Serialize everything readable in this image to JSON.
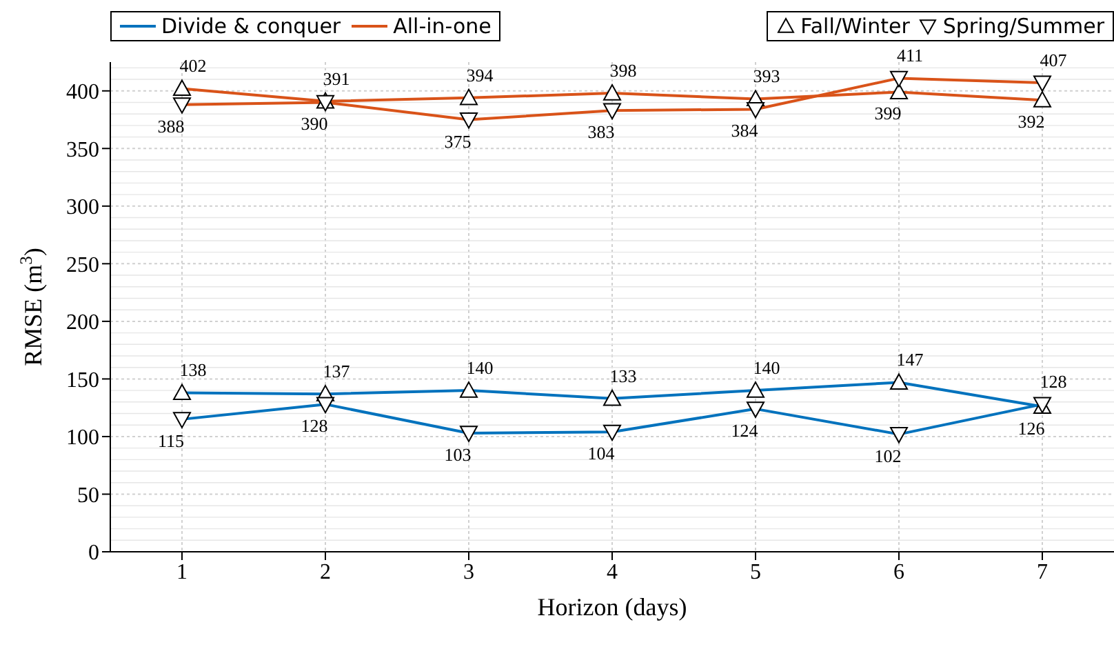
{
  "chart_data": {
    "type": "line",
    "xlabel": "Horizon (days)",
    "ylabel": "RMSE (m$^{3}$)",
    "annotations": [
      "Fall/Winter",
      "Spring/Summer"
    ],
    "x": [
      1,
      2,
      3,
      4,
      5,
      6,
      7
    ],
    "xlim": [
      0.5,
      7.5
    ],
    "xticks": [
      1,
      2,
      3,
      4,
      5,
      6,
      7
    ],
    "ylim": [
      0,
      425
    ],
    "yticks": [
      0,
      50,
      100,
      150,
      200,
      250,
      300,
      350,
      400
    ],
    "grid": true,
    "legend": "top",
    "data_labels": true,
    "series": [
      {
        "name": "Divide & conquer",
        "marker": "triangle",
        "color": "#0072bd",
        "values": [
          138,
          137,
          140,
          133,
          140,
          147,
          126
        ]
      },
      {
        "marker": "triangle-down",
        "color": "#0072bd",
        "values": [
          115,
          128,
          103,
          104,
          124,
          102,
          128
        ]
      },
      {
        "name": "All-in-one",
        "marker": "triangle",
        "color": "#d95319",
        "values": [
          402,
          391,
          394,
          398,
          393,
          399,
          392
        ]
      },
      {
        "marker": "triangle-down",
        "color": "#d95319",
        "values": [
          388,
          390,
          375,
          383,
          384,
          411,
          407
        ]
      }
    ]
  }
}
